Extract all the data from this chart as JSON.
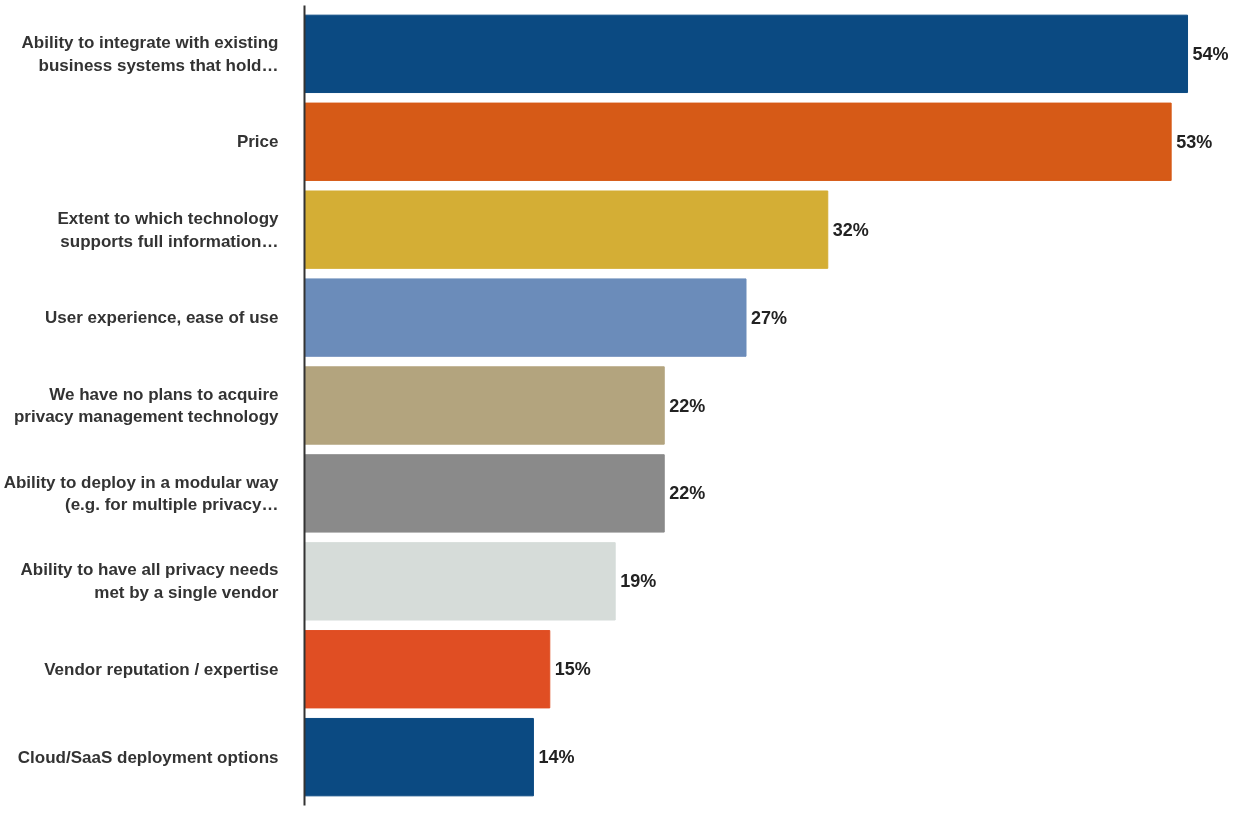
{
  "chart_data": {
    "type": "bar",
    "orientation": "horizontal",
    "categories": [
      "Ability to integrate with existing business systems that hold…",
      "Price",
      "Extent to which technology supports full information…",
      "User experience, ease of use",
      "We have no plans to acquire privacy management technology",
      "Ability to deploy in a modular way (e.g. for multiple privacy…",
      "Ability to have all privacy needs met by a single vendor",
      "Vendor reputation / expertise",
      "Cloud/SaaS deployment options"
    ],
    "values": [
      54,
      53,
      32,
      27,
      22,
      22,
      19,
      15,
      14
    ],
    "colors": [
      "#0b4a82",
      "#d65a17",
      "#d4ae35",
      "#6b8cba",
      "#b3a47e",
      "#8a8a8a",
      "#d6dcd9",
      "#e04e23",
      "#0b4a82"
    ],
    "value_labels": [
      "54%",
      "53%",
      "32%",
      "27%",
      "22%",
      "22%",
      "19%",
      "15%",
      "14%"
    ],
    "grid": false
  }
}
